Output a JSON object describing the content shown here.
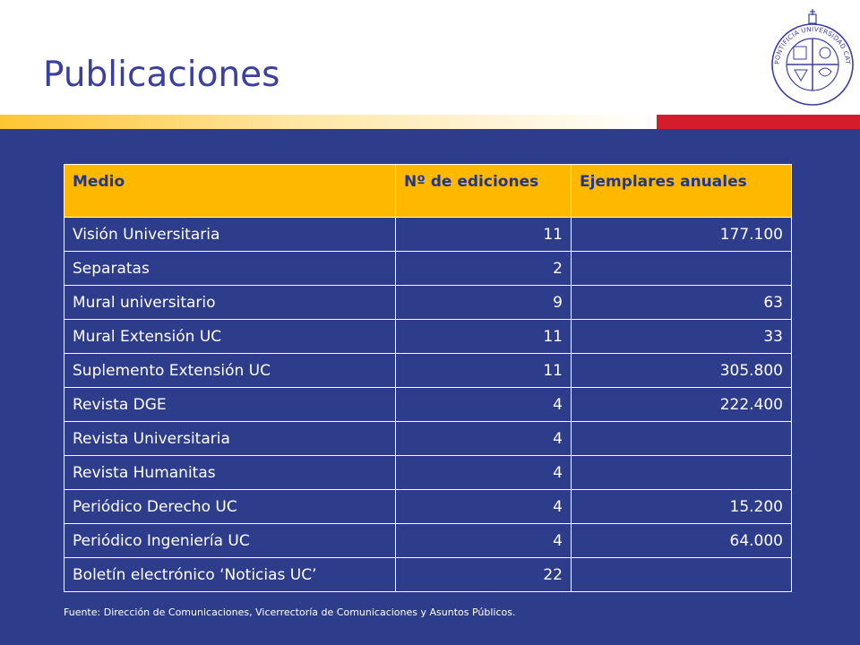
{
  "slide": {
    "title": "Publicaciones",
    "source": "Fuente: Dirección de Comunicaciones, Vicerrectoría de Comunicaciones y Asuntos Públicos.",
    "logo_text": "PONTIFICIA UNIVERSIDAD CATOLICA DE CHILE"
  },
  "colors": {
    "title": "#3b3f9f",
    "body_background": "#2e3c8c",
    "header_background": "#ffb800",
    "header_text": "#1f3691",
    "stripe_yellow": "#ffc533",
    "stripe_red": "#d51c2c"
  },
  "table": {
    "headers": [
      "Medio",
      "Nº de ediciones",
      "Ejemplares anuales"
    ],
    "rows": [
      [
        "Visión Universitaria",
        "11",
        "177.100"
      ],
      [
        "Separatas",
        "2",
        ""
      ],
      [
        "Mural universitario",
        "9",
        "63"
      ],
      [
        "Mural Extensión UC",
        "11",
        "33"
      ],
      [
        "Suplemento Extensión UC",
        "11",
        "305.800"
      ],
      [
        "Revista DGE",
        "4",
        "222.400"
      ],
      [
        "Revista Universitaria",
        "4",
        ""
      ],
      [
        "Revista Humanitas",
        "4",
        ""
      ],
      [
        "Periódico Derecho UC",
        "4",
        "15.200"
      ],
      [
        "Periódico Ingeniería UC",
        "4",
        "64.000"
      ],
      [
        "Boletín electrónico ‘Noticias UC’",
        "22",
        ""
      ]
    ]
  }
}
